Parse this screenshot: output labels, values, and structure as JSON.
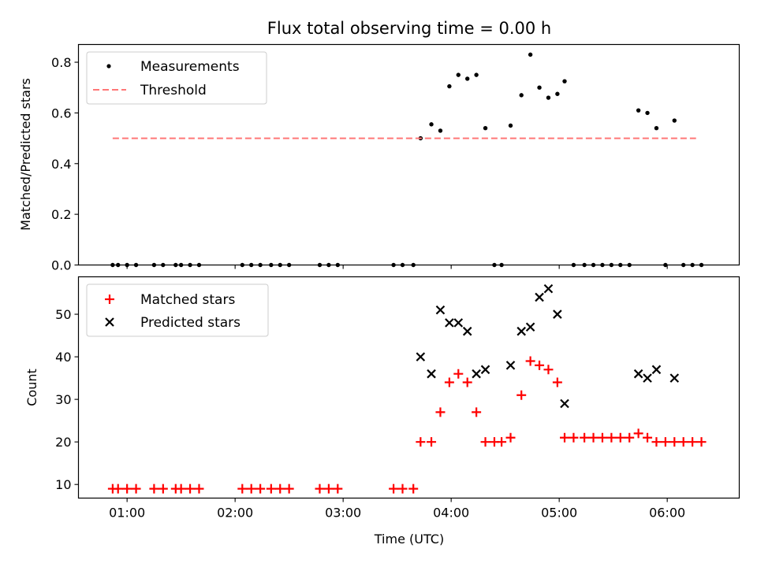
{
  "chart_data": [
    {
      "type": "scatter",
      "title": "Flux total observing time = 0.00 h",
      "xlabel": "",
      "ylabel": "Matched/Predicted stars",
      "xlim": [
        "00:33",
        "06:40"
      ],
      "ylim": [
        0,
        0.87
      ],
      "yticks": [
        0.0,
        0.2,
        0.4,
        0.6,
        0.8
      ],
      "ytick_labels": [
        "0.0",
        "0.2",
        "0.4",
        "0.6",
        "0.8"
      ],
      "grid": false,
      "legend": "top-left",
      "series": [
        {
          "name": "Measurements",
          "marker": "dot",
          "color": "#000000",
          "points": [
            [
              "00:52",
              0
            ],
            [
              "00:55",
              0
            ],
            [
              "01:00",
              0
            ],
            [
              "01:05",
              0
            ],
            [
              "01:15",
              0
            ],
            [
              "01:20",
              0
            ],
            [
              "01:27",
              0
            ],
            [
              "01:30",
              0
            ],
            [
              "01:35",
              0
            ],
            [
              "01:40",
              0
            ],
            [
              "02:04",
              0
            ],
            [
              "02:09",
              0
            ],
            [
              "02:14",
              0
            ],
            [
              "02:20",
              0
            ],
            [
              "02:25",
              0
            ],
            [
              "02:30",
              0
            ],
            [
              "02:47",
              0
            ],
            [
              "02:52",
              0
            ],
            [
              "02:57",
              0
            ],
            [
              "03:28",
              0
            ],
            [
              "03:33",
              0
            ],
            [
              "03:39",
              0
            ],
            [
              "03:43",
              0.5
            ],
            [
              "03:49",
              0.555
            ],
            [
              "03:54",
              0.53
            ],
            [
              "03:59",
              0.705
            ],
            [
              "04:04",
              0.75
            ],
            [
              "04:09",
              0.735
            ],
            [
              "04:14",
              0.75
            ],
            [
              "04:19",
              0.54
            ],
            [
              "04:24",
              0
            ],
            [
              "04:28",
              0
            ],
            [
              "04:33",
              0.55
            ],
            [
              "04:39",
              0.67
            ],
            [
              "04:44",
              0.83
            ],
            [
              "04:49",
              0.7
            ],
            [
              "04:54",
              0.66
            ],
            [
              "04:59",
              0.675
            ],
            [
              "05:03",
              0.725
            ],
            [
              "05:08",
              0
            ],
            [
              "05:14",
              0
            ],
            [
              "05:19",
              0
            ],
            [
              "05:24",
              0
            ],
            [
              "05:29",
              0
            ],
            [
              "05:34",
              0
            ],
            [
              "05:39",
              0
            ],
            [
              "05:44",
              0.61
            ],
            [
              "05:49",
              0.6
            ],
            [
              "05:54",
              0.54
            ],
            [
              "05:59",
              0
            ],
            [
              "06:04",
              0.57
            ],
            [
              "06:09",
              0
            ],
            [
              "06:14",
              0
            ],
            [
              "06:19",
              0
            ]
          ]
        },
        {
          "name": "Threshold",
          "style": "dashed",
          "color": "#ff7777",
          "points": [
            [
              "00:52",
              0.5
            ],
            [
              "06:16",
              0.5
            ]
          ]
        }
      ]
    },
    {
      "type": "scatter",
      "title": "",
      "xlabel": "Time (UTC)",
      "ylabel": "Count",
      "xlim": [
        "00:33",
        "06:40"
      ],
      "ylim": [
        6.8,
        58.8
      ],
      "yticks": [
        10,
        20,
        30,
        40,
        50
      ],
      "ytick_labels": [
        "10",
        "20",
        "30",
        "40",
        "50"
      ],
      "xticks": [
        "01:00",
        "02:00",
        "03:00",
        "04:00",
        "05:00",
        "06:00"
      ],
      "xtick_labels": [
        "01:00",
        "02:00",
        "03:00",
        "04:00",
        "05:00",
        "06:00"
      ],
      "grid": false,
      "legend": "top-left",
      "series": [
        {
          "name": "Matched stars",
          "marker": "plus",
          "color": "#ff0000",
          "points": [
            [
              "00:52",
              9
            ],
            [
              "00:55",
              9
            ],
            [
              "01:00",
              9
            ],
            [
              "01:05",
              9
            ],
            [
              "01:15",
              9
            ],
            [
              "01:20",
              9
            ],
            [
              "01:27",
              9
            ],
            [
              "01:30",
              9
            ],
            [
              "01:35",
              9
            ],
            [
              "01:40",
              9
            ],
            [
              "02:04",
              9
            ],
            [
              "02:09",
              9
            ],
            [
              "02:14",
              9
            ],
            [
              "02:20",
              9
            ],
            [
              "02:25",
              9
            ],
            [
              "02:30",
              9
            ],
            [
              "02:47",
              9
            ],
            [
              "02:52",
              9
            ],
            [
              "02:57",
              9
            ],
            [
              "03:28",
              9
            ],
            [
              "03:33",
              9
            ],
            [
              "03:39",
              9
            ],
            [
              "03:43",
              20
            ],
            [
              "03:49",
              20
            ],
            [
              "03:54",
              27
            ],
            [
              "03:59",
              34
            ],
            [
              "04:04",
              36
            ],
            [
              "04:09",
              34
            ],
            [
              "04:14",
              27
            ],
            [
              "04:19",
              20
            ],
            [
              "04:24",
              20
            ],
            [
              "04:28",
              20
            ],
            [
              "04:33",
              21
            ],
            [
              "04:39",
              31
            ],
            [
              "04:44",
              39
            ],
            [
              "04:49",
              38
            ],
            [
              "04:54",
              37
            ],
            [
              "04:59",
              34
            ],
            [
              "05:03",
              21
            ],
            [
              "05:08",
              21
            ],
            [
              "05:14",
              21
            ],
            [
              "05:19",
              21
            ],
            [
              "05:24",
              21
            ],
            [
              "05:29",
              21
            ],
            [
              "05:34",
              21
            ],
            [
              "05:39",
              21
            ],
            [
              "05:44",
              22
            ],
            [
              "05:49",
              21
            ],
            [
              "05:54",
              20
            ],
            [
              "05:59",
              20
            ],
            [
              "06:04",
              20
            ],
            [
              "06:09",
              20
            ],
            [
              "06:14",
              20
            ],
            [
              "06:19",
              20
            ]
          ]
        },
        {
          "name": "Predicted stars",
          "marker": "x",
          "color": "#000000",
          "points": [
            [
              "03:43",
              40
            ],
            [
              "03:49",
              36
            ],
            [
              "03:54",
              51
            ],
            [
              "03:59",
              48
            ],
            [
              "04:04",
              48
            ],
            [
              "04:09",
              46
            ],
            [
              "04:14",
              36
            ],
            [
              "04:19",
              37
            ],
            [
              "04:33",
              38
            ],
            [
              "04:39",
              46
            ],
            [
              "04:44",
              47
            ],
            [
              "04:49",
              54
            ],
            [
              "04:54",
              56
            ],
            [
              "04:59",
              50
            ],
            [
              "05:03",
              29
            ],
            [
              "05:44",
              36
            ],
            [
              "05:49",
              35
            ],
            [
              "05:54",
              37
            ],
            [
              "06:04",
              35
            ]
          ]
        }
      ]
    }
  ]
}
